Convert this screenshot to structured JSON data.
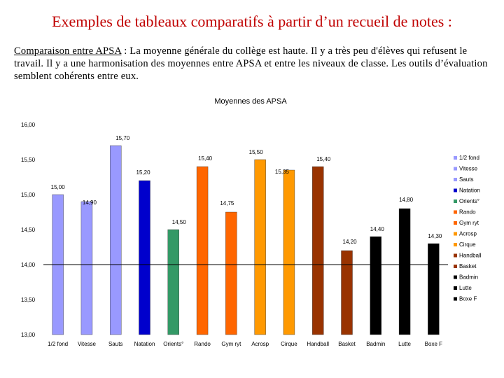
{
  "slide": {
    "title": "Exemples de tableaux comparatifs à partir d’un recueil de notes :",
    "lead": "Comparaison entre APSA",
    "paragraph": " : La moyenne générale du collège est haute. Il y a très peu d'élèves qui refusent le travail. Il y a une harmonisation des moyennes entre APSA et entre les niveaux de classe. Les outils d’évaluation semblent cohérents entre eux."
  },
  "chart_data": {
    "type": "bar",
    "title": "Moyennes des APSA",
    "xlabel": "",
    "ylabel": "",
    "ylim": [
      13.0,
      16.0
    ],
    "yticks": [
      "13,00",
      "13,50",
      "14,00",
      "14,50",
      "15,00",
      "15,50",
      "16,00"
    ],
    "grid": false,
    "legend": "right",
    "categories": [
      "1/2 fond",
      "Vitesse",
      "Sauts",
      "Natation",
      "Orients°",
      "Rando",
      "Gym ryt",
      "Acrosp",
      "Cirque",
      "Handball",
      "Basket",
      "Badmin",
      "Lutte",
      "Boxe F"
    ],
    "values": [
      15.0,
      14.9,
      15.7,
      15.2,
      14.5,
      15.4,
      14.75,
      15.5,
      15.35,
      15.4,
      14.2,
      14.4,
      14.8,
      14.3
    ],
    "value_labels": [
      "15,00",
      "14,90",
      "15,70",
      "15,20",
      "14,50",
      "15,40",
      "14,75",
      "15,50",
      "15,35",
      "15,40",
      "14,20",
      "14,40",
      "14,80",
      "14,30"
    ],
    "legend_entries": [
      "1/2 fond",
      "Vitesse",
      "Sauts",
      "Natation",
      "Orients°",
      "Rando",
      "Gym ryt",
      "Acrosp",
      "Cirque",
      "Handball",
      "Basket",
      "Badmin",
      "Lutte",
      "Boxe F"
    ],
    "colors": [
      "#9999ff",
      "#9999ff",
      "#9999ff",
      "#0000cc",
      "#339966",
      "#ff6600",
      "#ff6600",
      "#ff9900",
      "#ff9900",
      "#993300",
      "#993300",
      "#000000",
      "#000000",
      "#000000"
    ],
    "axis_color": "#000000"
  }
}
